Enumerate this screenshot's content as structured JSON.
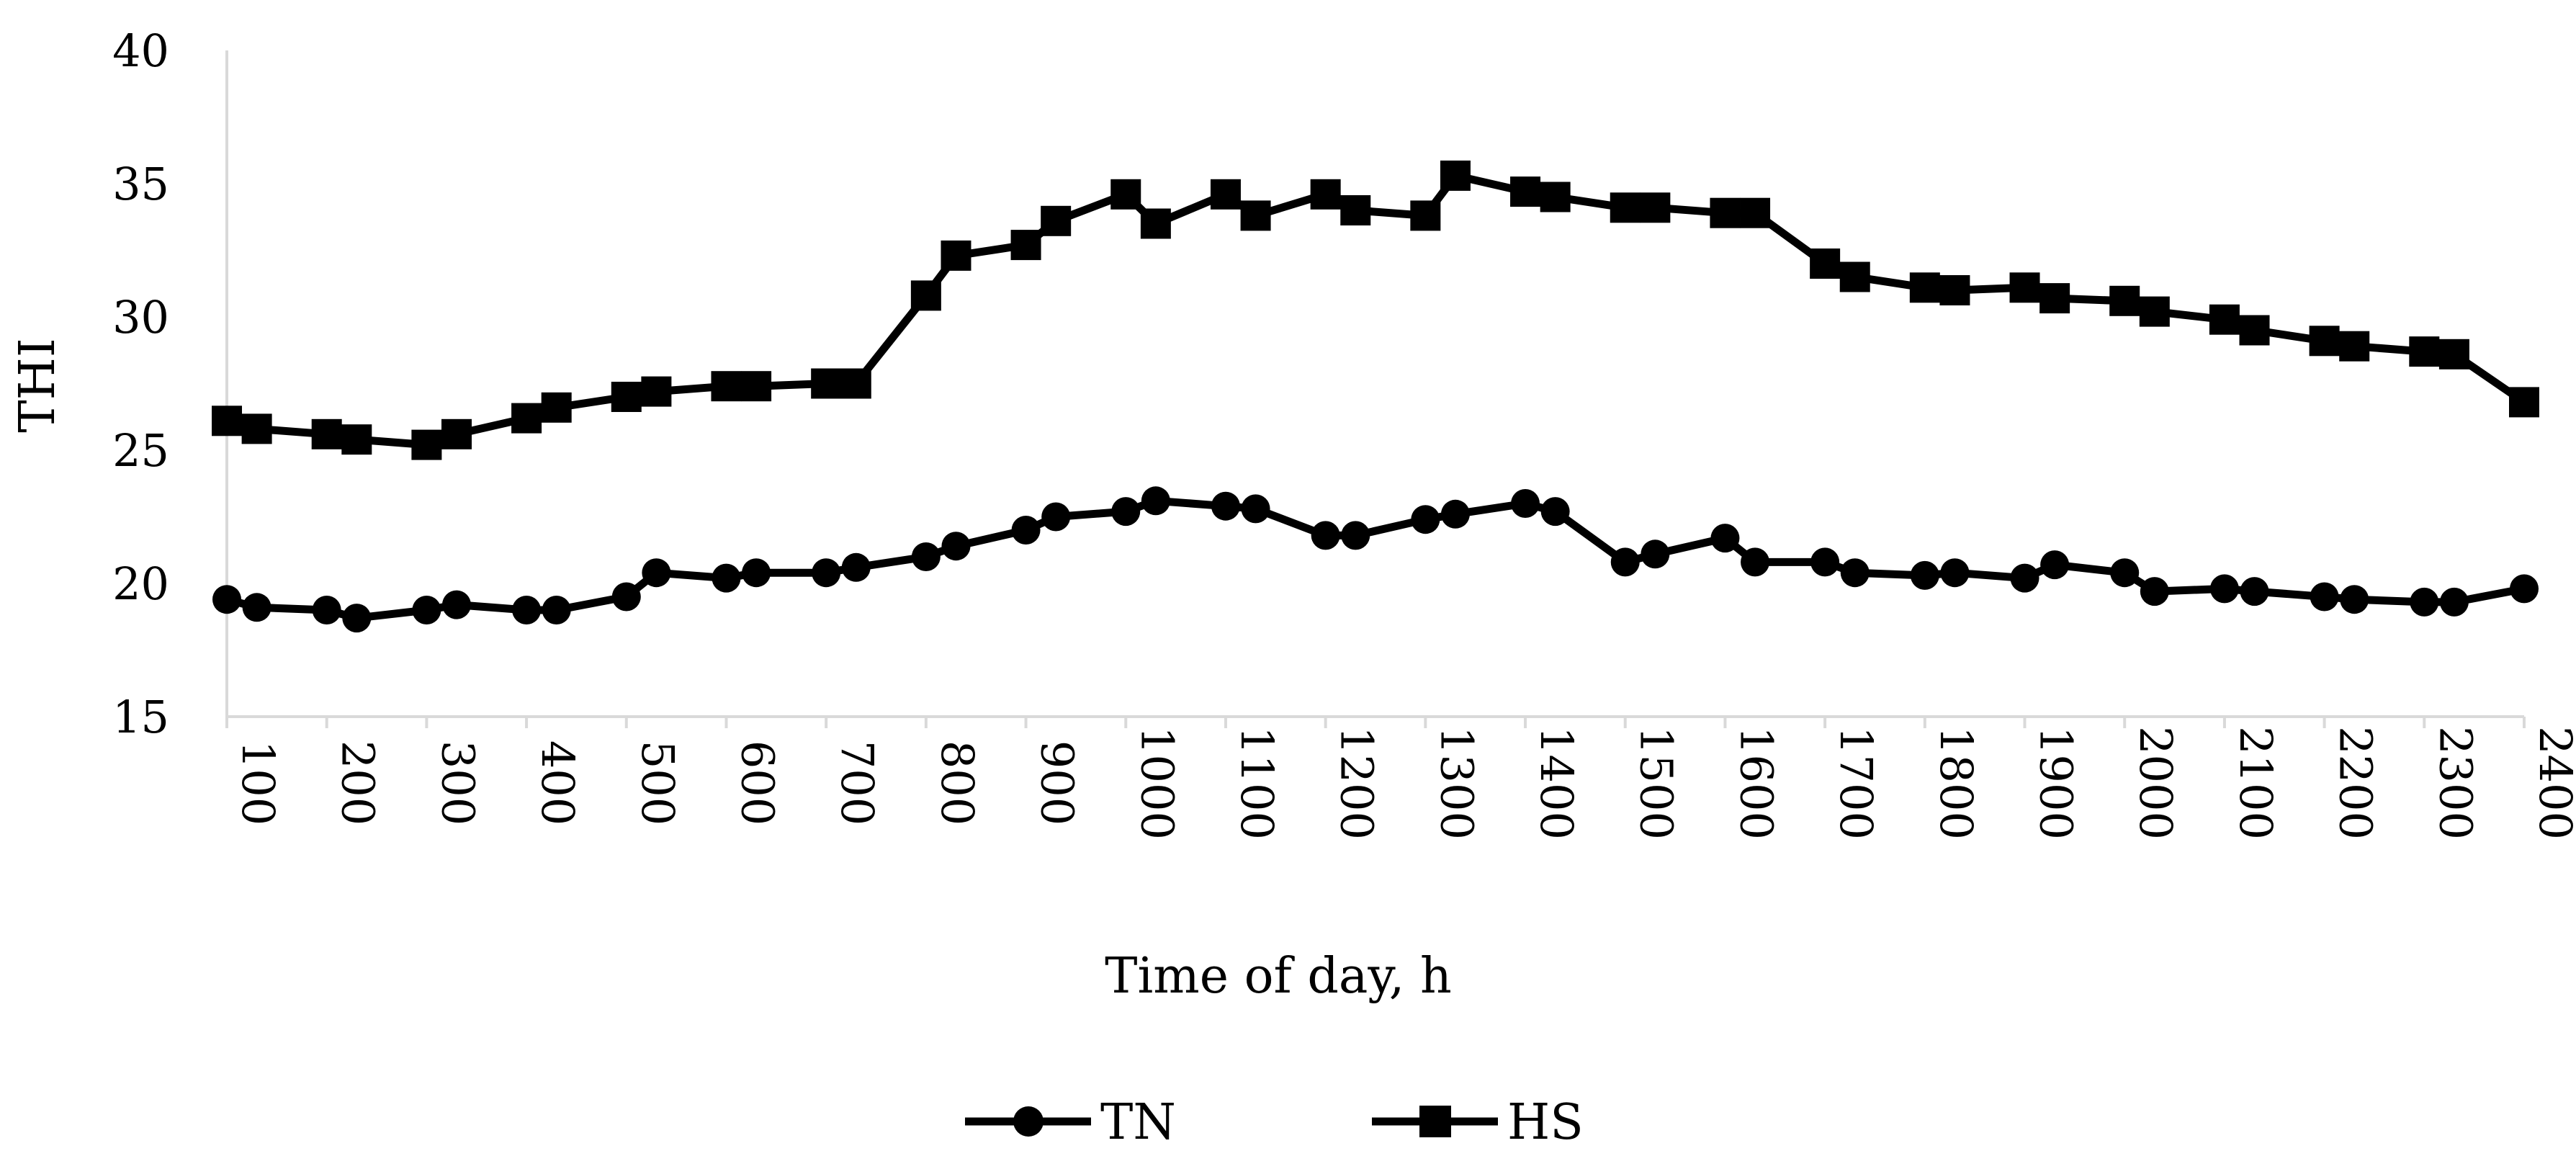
{
  "chart_data": {
    "type": "line",
    "title": "",
    "xlabel": "Time of day, h",
    "ylabel": "THI",
    "ylim": [
      15,
      40
    ],
    "yticks": [
      "15",
      "20",
      "25",
      "30",
      "35",
      "40"
    ],
    "categories": [
      "100",
      "200",
      "300",
      "400",
      "500",
      "600",
      "700",
      "800",
      "900",
      "1000",
      "1100",
      "1200",
      "1300",
      "1400",
      "1500",
      "1600",
      "1700",
      "1800",
      "1900",
      "2000",
      "2100",
      "2200",
      "2300",
      "2400"
    ],
    "grid": false,
    "legend_position": "bottom-center",
    "series": [
      {
        "name": "TN",
        "marker": "circle",
        "color": "#000000",
        "x": [
          100,
          130,
          200,
          230,
          300,
          330,
          400,
          430,
          500,
          530,
          600,
          630,
          700,
          730,
          800,
          830,
          900,
          930,
          1000,
          1030,
          1100,
          1130,
          1200,
          1230,
          1300,
          1330,
          1400,
          1430,
          1500,
          1530,
          1600,
          1630,
          1700,
          1730,
          1800,
          1830,
          1900,
          1930,
          2000,
          2030,
          2100,
          2130,
          2200,
          2230,
          2300,
          2330,
          2400
        ],
        "y": [
          19.4,
          19.1,
          19.0,
          18.7,
          19.0,
          19.2,
          19.0,
          19.0,
          19.5,
          20.4,
          20.2,
          20.4,
          20.4,
          20.6,
          21.0,
          21.4,
          22.0,
          22.5,
          22.7,
          23.1,
          22.9,
          22.8,
          21.8,
          21.8,
          22.4,
          22.6,
          23.0,
          22.7,
          20.8,
          21.1,
          21.7,
          20.8,
          20.8,
          20.4,
          20.3,
          20.4,
          20.2,
          20.7,
          20.4,
          19.7,
          19.8,
          19.7,
          19.5,
          19.4,
          19.3,
          19.3,
          19.8
        ]
      },
      {
        "name": "HS",
        "marker": "square",
        "color": "#000000",
        "x": [
          100,
          130,
          200,
          230,
          300,
          330,
          400,
          430,
          500,
          530,
          600,
          630,
          700,
          730,
          800,
          830,
          900,
          930,
          1000,
          1030,
          1100,
          1130,
          1200,
          1230,
          1300,
          1330,
          1400,
          1430,
          1500,
          1530,
          1600,
          1630,
          1700,
          1730,
          1800,
          1830,
          1900,
          1930,
          2000,
          2030,
          2100,
          2130,
          2200,
          2230,
          2300,
          2330,
          2400
        ],
        "y": [
          26.1,
          25.8,
          25.6,
          25.4,
          25.2,
          25.6,
          26.2,
          26.6,
          27.0,
          27.2,
          27.4,
          27.4,
          27.5,
          27.5,
          30.8,
          32.3,
          32.7,
          33.6,
          34.6,
          33.5,
          34.6,
          33.8,
          34.6,
          34.0,
          33.8,
          35.3,
          34.7,
          34.5,
          34.1,
          34.1,
          33.9,
          33.9,
          32.0,
          31.5,
          31.1,
          31.0,
          31.1,
          30.7,
          30.6,
          30.2,
          29.9,
          29.5,
          29.1,
          28.9,
          28.7,
          28.6,
          26.8
        ]
      }
    ]
  }
}
